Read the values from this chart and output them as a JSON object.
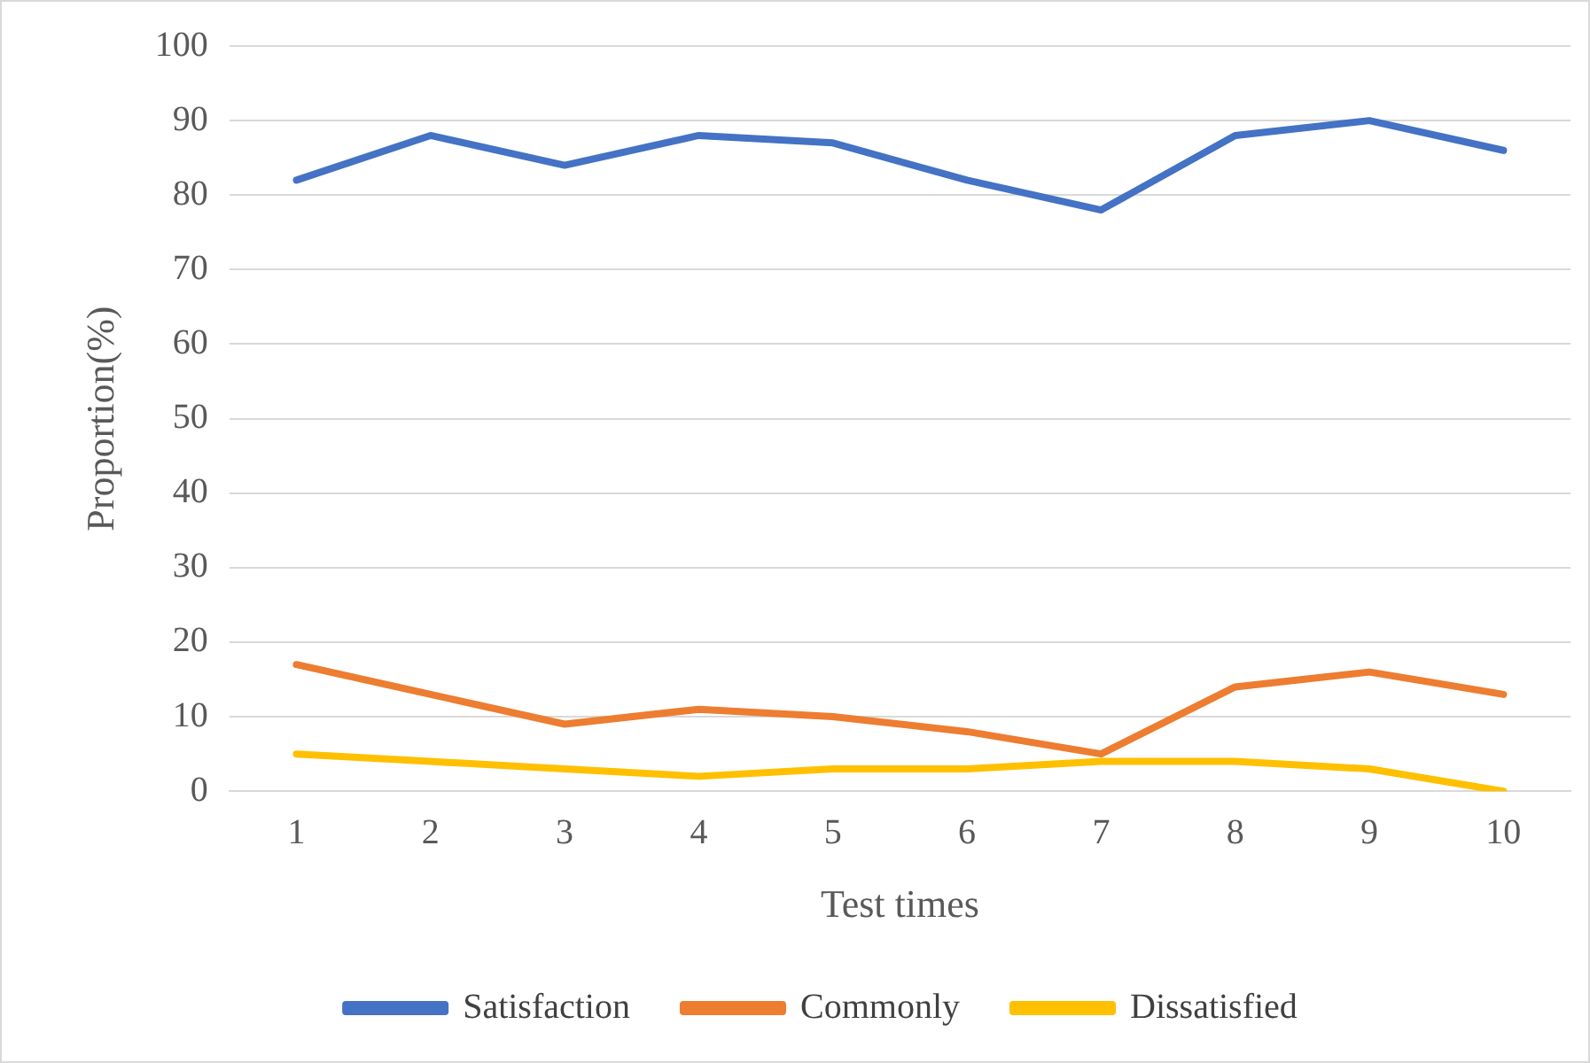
{
  "chart_data": {
    "type": "line",
    "xlabel": "Test times",
    "ylabel": "Proportion(%)",
    "categories": [
      "1",
      "2",
      "3",
      "4",
      "5",
      "6",
      "7",
      "8",
      "9",
      "10"
    ],
    "series": [
      {
        "name": "Satisfaction",
        "color": "#4472c4",
        "values": [
          82,
          88,
          84,
          88,
          87,
          82,
          78,
          88,
          90,
          86
        ]
      },
      {
        "name": "Commonly",
        "color": "#ed7d31",
        "values": [
          17,
          13,
          9,
          11,
          10,
          8,
          5,
          14,
          16,
          13
        ]
      },
      {
        "name": "Dissatisfied",
        "color": "#ffc000",
        "values": [
          5,
          4,
          3,
          2,
          3,
          3,
          4,
          4,
          3,
          0
        ]
      }
    ],
    "ylim": [
      0,
      100
    ],
    "yticks": [
      0,
      10,
      20,
      30,
      40,
      50,
      60,
      70,
      80,
      90,
      100
    ],
    "grid": "y",
    "legend": "bottom",
    "marker": "none",
    "line_style": "solid"
  }
}
